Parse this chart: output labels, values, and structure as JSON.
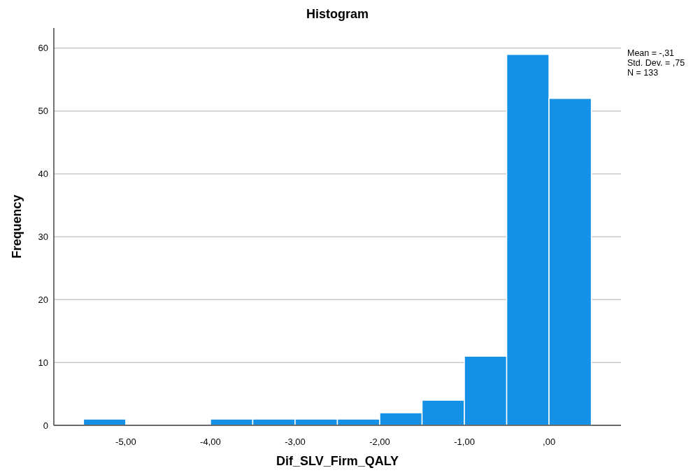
{
  "chart_data": {
    "type": "histogram",
    "title": "Histogram",
    "xlabel": "Dif_SLV_Firm_QALY",
    "ylabel": "Frequency",
    "bins": [
      -5.5,
      -5,
      -4.5,
      -4,
      -3.5,
      -3,
      -2.5,
      -2,
      -1.5,
      -1,
      -0.5,
      0,
      0.5
    ],
    "values": [
      1,
      0,
      0,
      1,
      1,
      1,
      1,
      2,
      4,
      11,
      59,
      52
    ],
    "color": "#1491e6",
    "xlim": [
      -5.85,
      0.85
    ],
    "xticks": [
      {
        "value": -5,
        "label": "-5,00"
      },
      {
        "value": -4,
        "label": "-4,00"
      },
      {
        "value": -3,
        "label": "-3,00"
      },
      {
        "value": -2,
        "label": "-2,00"
      },
      {
        "value": -1,
        "label": "-1,00"
      },
      {
        "value": 0,
        "label": ",00"
      }
    ],
    "ylim": [
      0,
      63.2
    ],
    "yticks": [
      0,
      10,
      20,
      30,
      40,
      50,
      60
    ],
    "grid": "y",
    "annotations": [
      "Mean = -,31",
      "Std. Dev. = ,75",
      "N = 133"
    ]
  }
}
